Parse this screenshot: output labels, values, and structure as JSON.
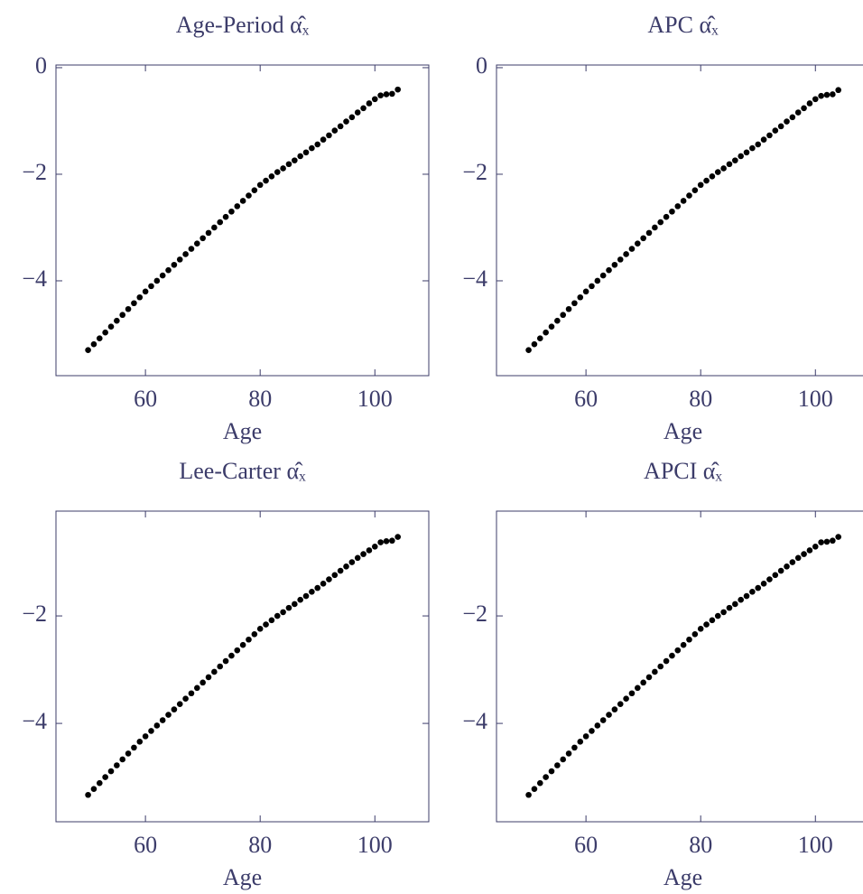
{
  "chart_data": [
    {
      "type": "scatter",
      "title": "Age-Period α̂ₓ",
      "x_label": "Age",
      "color": "#000000",
      "x": [
        50,
        51,
        52,
        53,
        54,
        55,
        56,
        57,
        58,
        59,
        60,
        61,
        62,
        63,
        64,
        65,
        66,
        67,
        68,
        69,
        70,
        71,
        72,
        73,
        74,
        75,
        76,
        77,
        78,
        79,
        80,
        81,
        82,
        83,
        84,
        85,
        86,
        87,
        88,
        89,
        90,
        91,
        92,
        93,
        94,
        95,
        96,
        97,
        98,
        99,
        100,
        101,
        102,
        103,
        104
      ],
      "values": [
        -5.3,
        -5.19,
        -5.08,
        -4.97,
        -4.86,
        -4.75,
        -4.64,
        -4.53,
        -4.42,
        -4.31,
        -4.2,
        -4.1,
        -4.0,
        -3.9,
        -3.8,
        -3.7,
        -3.6,
        -3.5,
        -3.4,
        -3.3,
        -3.2,
        -3.1,
        -3.0,
        -2.9,
        -2.8,
        -2.7,
        -2.6,
        -2.5,
        -2.4,
        -2.3,
        -2.2,
        -2.12,
        -2.04,
        -1.96,
        -1.89,
        -1.81,
        -1.74,
        -1.66,
        -1.59,
        -1.51,
        -1.44,
        -1.35,
        -1.27,
        -1.18,
        -1.1,
        -1.01,
        -0.93,
        -0.84,
        -0.76,
        -0.67,
        -0.59,
        -0.52,
        -0.5,
        -0.49,
        -0.41
      ],
      "xlim": [
        44.4,
        109.4
      ],
      "ylim": [
        -5.78,
        0.05
      ],
      "xticks": [
        60,
        80,
        100
      ],
      "yticks": [
        {
          "value": -4,
          "label": "−4"
        },
        {
          "value": -2,
          "label": "−2"
        },
        0
      ]
    },
    {
      "type": "scatter",
      "title": "APC α̂ₓ",
      "x_label": "Age",
      "color": "#000000",
      "x": [
        50,
        51,
        52,
        53,
        54,
        55,
        56,
        57,
        58,
        59,
        60,
        61,
        62,
        63,
        64,
        65,
        66,
        67,
        68,
        69,
        70,
        71,
        72,
        73,
        74,
        75,
        76,
        77,
        78,
        79,
        80,
        81,
        82,
        83,
        84,
        85,
        86,
        87,
        88,
        89,
        90,
        91,
        92,
        93,
        94,
        95,
        96,
        97,
        98,
        99,
        100,
        101,
        102,
        103,
        104
      ],
      "values": [
        -5.3,
        -5.19,
        -5.08,
        -4.97,
        -4.86,
        -4.75,
        -4.64,
        -4.53,
        -4.42,
        -4.31,
        -4.2,
        -4.1,
        -4.0,
        -3.9,
        -3.8,
        -3.7,
        -3.6,
        -3.5,
        -3.4,
        -3.3,
        -3.2,
        -3.1,
        -3.0,
        -2.9,
        -2.8,
        -2.7,
        -2.6,
        -2.5,
        -2.4,
        -2.3,
        -2.2,
        -2.12,
        -2.04,
        -1.96,
        -1.89,
        -1.81,
        -1.74,
        -1.66,
        -1.59,
        -1.51,
        -1.44,
        -1.35,
        -1.27,
        -1.18,
        -1.1,
        -1.01,
        -0.93,
        -0.84,
        -0.76,
        -0.67,
        -0.59,
        -0.53,
        -0.51,
        -0.5,
        -0.42
      ],
      "xlim": [
        44.4,
        109.4
      ],
      "ylim": [
        -5.78,
        0.05
      ],
      "xticks": [
        60,
        80,
        100
      ],
      "yticks": [
        {
          "value": -4,
          "label": "−4"
        },
        {
          "value": -2,
          "label": "−2"
        },
        0
      ]
    },
    {
      "type": "scatter",
      "title": "Lee-Carter α̂ₓ",
      "x_label": "Age",
      "color": "#000000",
      "x": [
        50,
        51,
        52,
        53,
        54,
        55,
        56,
        57,
        58,
        59,
        60,
        61,
        62,
        63,
        64,
        65,
        66,
        67,
        68,
        69,
        70,
        71,
        72,
        73,
        74,
        75,
        76,
        77,
        78,
        79,
        80,
        81,
        82,
        83,
        84,
        85,
        86,
        87,
        88,
        89,
        90,
        91,
        92,
        93,
        94,
        95,
        96,
        97,
        98,
        99,
        100,
        101,
        102,
        103,
        104
      ],
      "values": [
        -5.33,
        -5.22,
        -5.11,
        -5.0,
        -4.89,
        -4.78,
        -4.67,
        -4.56,
        -4.45,
        -4.34,
        -4.24,
        -4.14,
        -4.04,
        -3.94,
        -3.84,
        -3.74,
        -3.64,
        -3.54,
        -3.44,
        -3.34,
        -3.24,
        -3.14,
        -3.04,
        -2.94,
        -2.84,
        -2.74,
        -2.64,
        -2.54,
        -2.44,
        -2.34,
        -2.24,
        -2.16,
        -2.08,
        -2.0,
        -1.93,
        -1.85,
        -1.78,
        -1.7,
        -1.63,
        -1.55,
        -1.48,
        -1.4,
        -1.32,
        -1.24,
        -1.16,
        -1.08,
        -1.0,
        -0.92,
        -0.85,
        -0.78,
        -0.71,
        -0.63,
        -0.61,
        -0.6,
        -0.53
      ],
      "xlim": [
        44.4,
        109.4
      ],
      "ylim": [
        -5.83,
        -0.05
      ],
      "xticks": [
        60,
        80,
        100
      ],
      "yticks": [
        {
          "value": -4,
          "label": "−4"
        },
        {
          "value": -2,
          "label": "−2"
        }
      ]
    },
    {
      "type": "scatter",
      "title": "APCI α̂ₓ",
      "x_label": "Age",
      "color": "#000000",
      "x": [
        50,
        51,
        52,
        53,
        54,
        55,
        56,
        57,
        58,
        59,
        60,
        61,
        62,
        63,
        64,
        65,
        66,
        67,
        68,
        69,
        70,
        71,
        72,
        73,
        74,
        75,
        76,
        77,
        78,
        79,
        80,
        81,
        82,
        83,
        84,
        85,
        86,
        87,
        88,
        89,
        90,
        91,
        92,
        93,
        94,
        95,
        96,
        97,
        98,
        99,
        100,
        101,
        102,
        103,
        104
      ],
      "values": [
        -5.33,
        -5.22,
        -5.11,
        -5.0,
        -4.89,
        -4.78,
        -4.67,
        -4.56,
        -4.45,
        -4.34,
        -4.24,
        -4.14,
        -4.04,
        -3.94,
        -3.84,
        -3.74,
        -3.64,
        -3.54,
        -3.44,
        -3.34,
        -3.24,
        -3.14,
        -3.04,
        -2.94,
        -2.84,
        -2.74,
        -2.64,
        -2.54,
        -2.44,
        -2.34,
        -2.24,
        -2.16,
        -2.08,
        -2.0,
        -1.93,
        -1.85,
        -1.78,
        -1.7,
        -1.63,
        -1.55,
        -1.48,
        -1.4,
        -1.32,
        -1.24,
        -1.16,
        -1.08,
        -1.0,
        -0.92,
        -0.85,
        -0.78,
        -0.71,
        -0.63,
        -0.62,
        -0.6,
        -0.53
      ],
      "xlim": [
        44.4,
        109.4
      ],
      "ylim": [
        -5.83,
        -0.05
      ],
      "xticks": [
        60,
        80,
        100
      ],
      "yticks": [
        {
          "value": -4,
          "label": "−4"
        },
        {
          "value": -2,
          "label": "−2"
        }
      ]
    }
  ]
}
